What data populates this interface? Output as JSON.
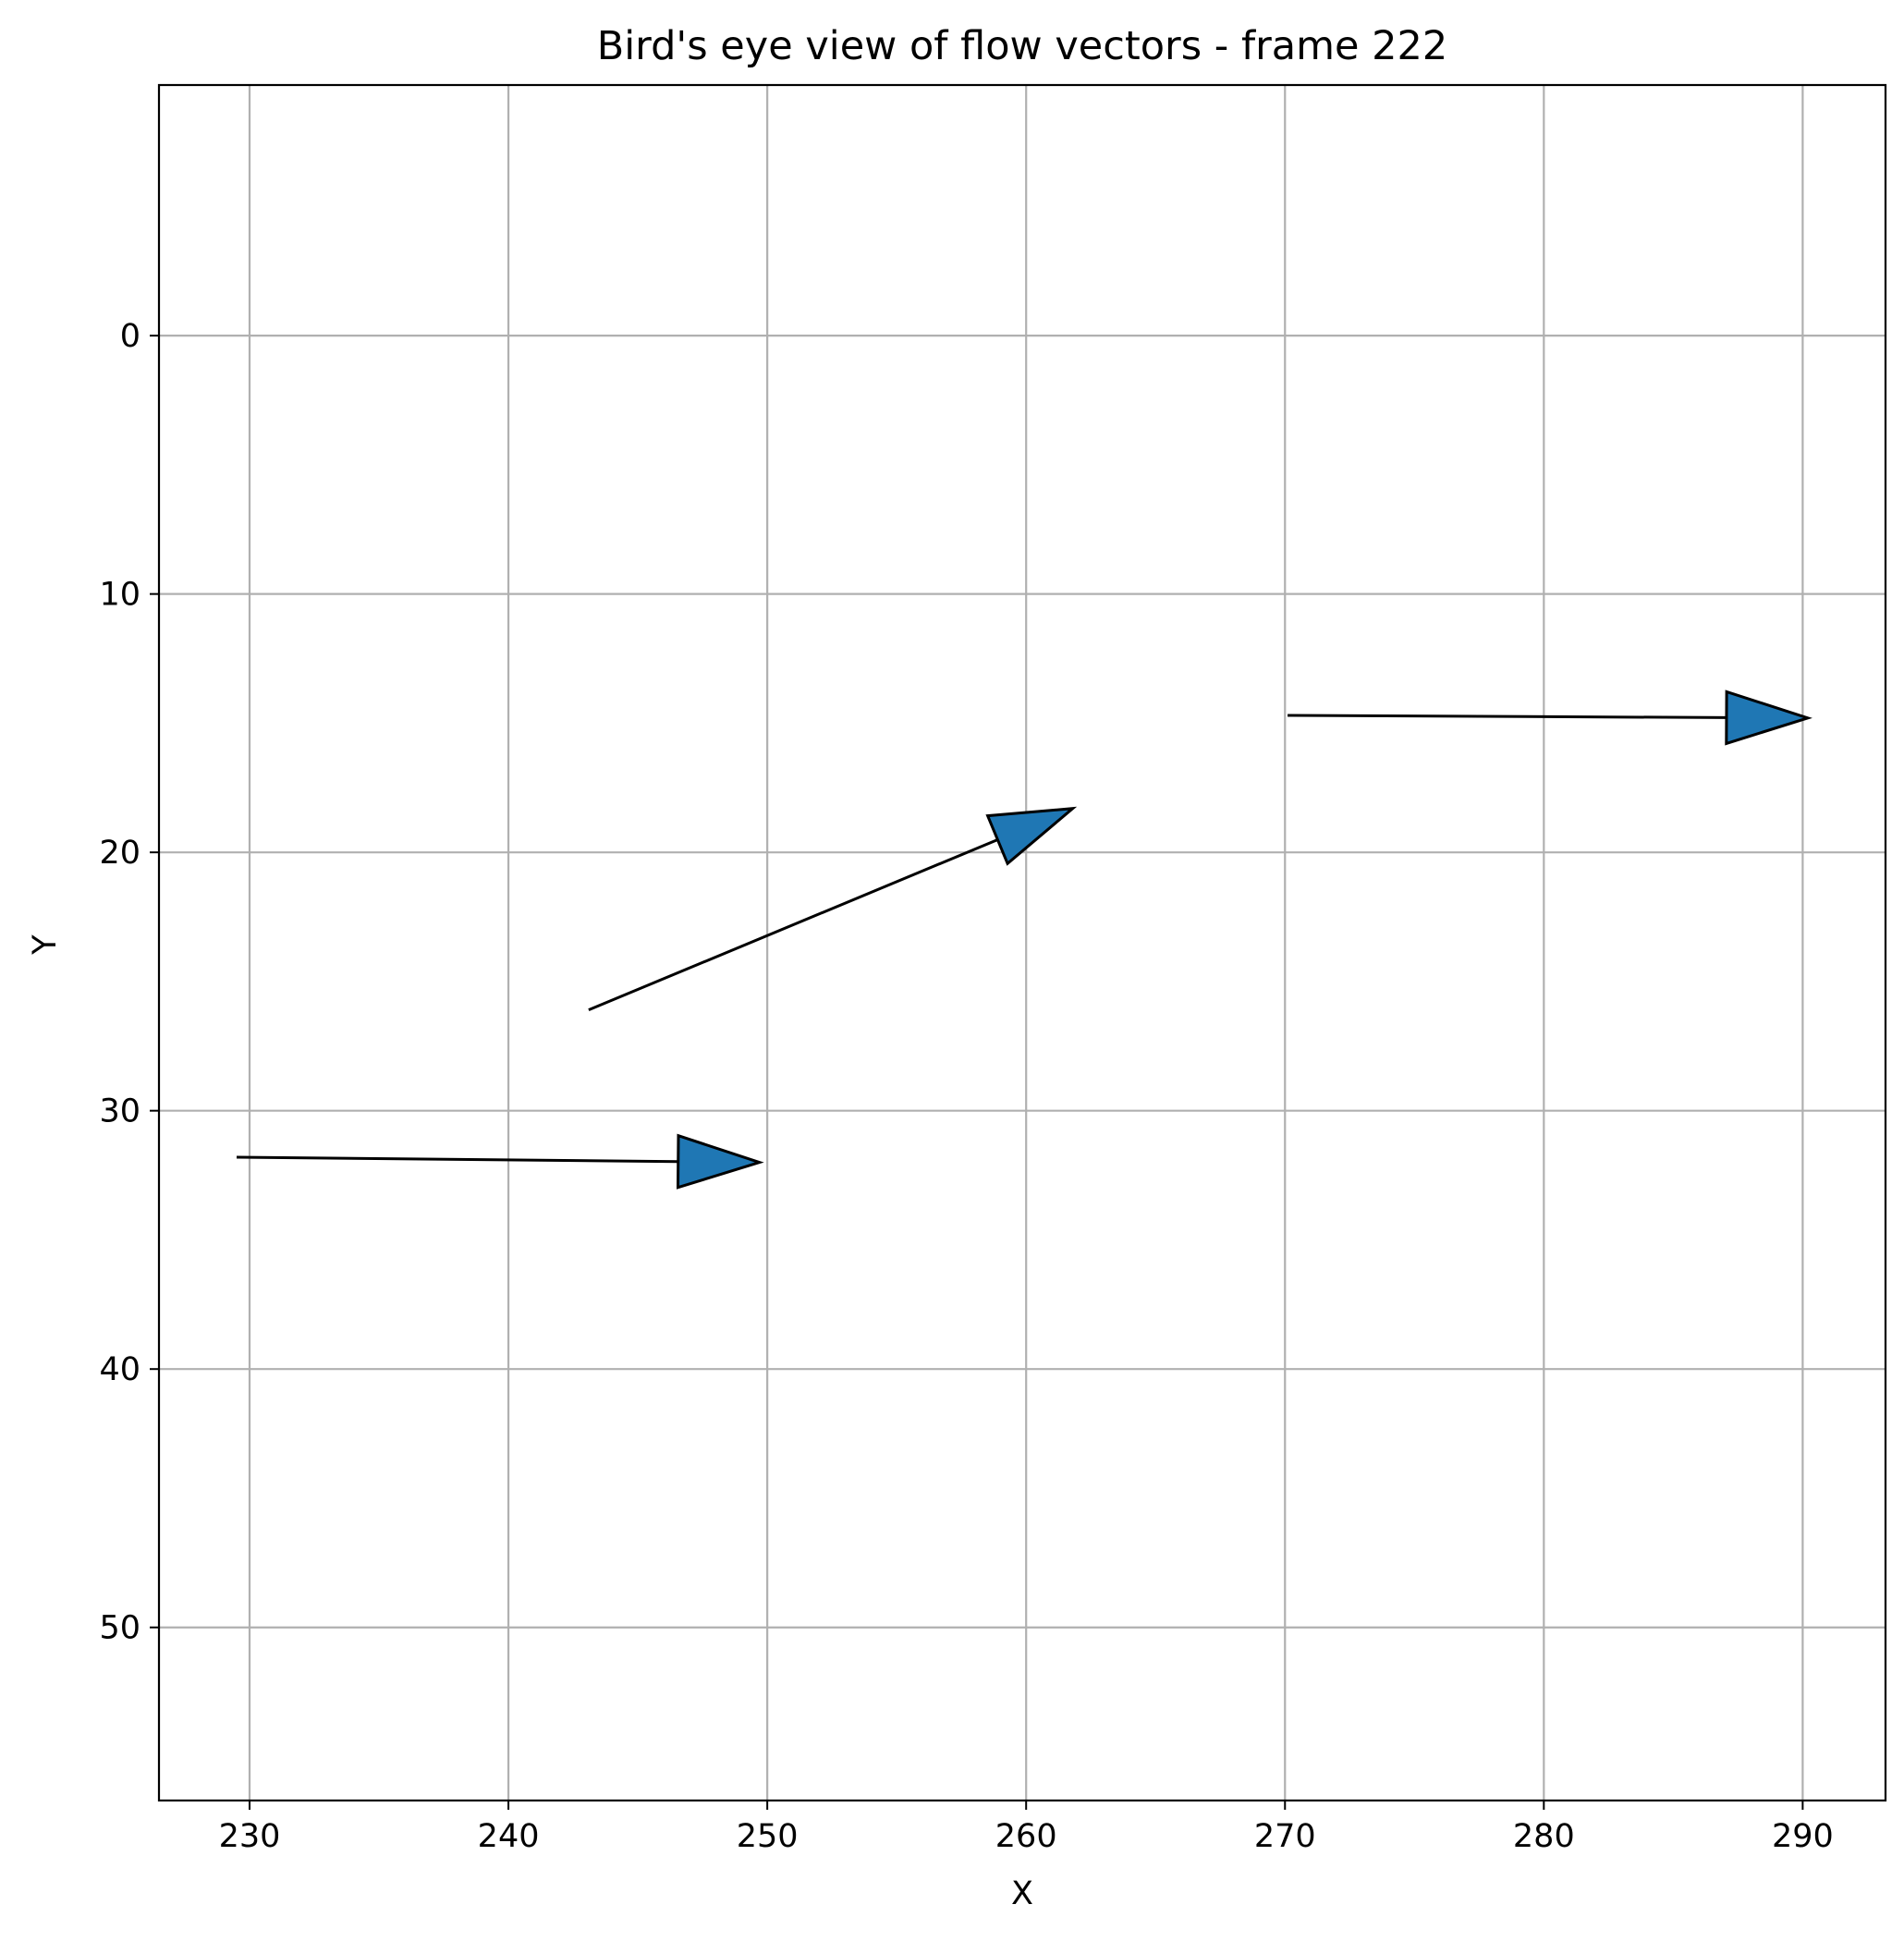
{
  "chart_data": {
    "type": "quiver",
    "title": "Bird's eye view of flow vectors - frame 222",
    "xlabel": "X",
    "ylabel": "Y",
    "xlim": [
      226.5,
      293.2
    ],
    "ylim": [
      56.7,
      -9.7
    ],
    "y_inverted": true,
    "grid": true,
    "arrow_color": "#1f77b4",
    "arrow_edge_color": "#000000",
    "xticks": [
      230,
      240,
      250,
      260,
      270,
      280,
      290
    ],
    "yticks": [
      0,
      10,
      20,
      30,
      40,
      50
    ],
    "vectors": [
      {
        "x": 229.5,
        "y": 31.8,
        "dx": 20.2,
        "dy": 0.2
      },
      {
        "x": 243.1,
        "y": 26.1,
        "dx": 18.7,
        "dy": -7.8
      },
      {
        "x": 270.1,
        "y": 14.7,
        "dx": 20.1,
        "dy": 0.1
      }
    ]
  }
}
